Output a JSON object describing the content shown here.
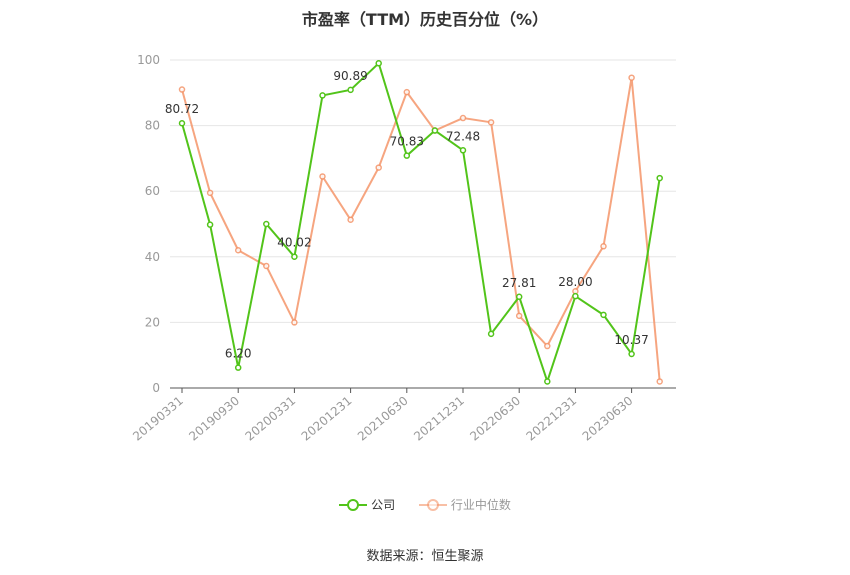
{
  "chart_data": {
    "type": "line",
    "title": "市盈率（TTM）历史百分位（%）",
    "xlabel": "",
    "ylabel": "",
    "ylim": [
      0,
      100
    ],
    "yticks": [
      0,
      20,
      40,
      60,
      80,
      100
    ],
    "x": [
      "20190331",
      "20190630",
      "20190930",
      "20191231",
      "20200331",
      "20200630",
      "20200930",
      "20201231",
      "20210331",
      "20210630",
      "20210930",
      "20211231",
      "20220331",
      "20220630",
      "20220930",
      "20221231",
      "20230331",
      "20230630",
      "20230930"
    ],
    "x_tick_labels": [
      "20190331",
      "",
      "20190930",
      "",
      "20200331",
      "",
      "20201231",
      "",
      "20210630",
      "",
      "20211231",
      "",
      "20220630",
      "",
      "20221231",
      "",
      "20230630",
      "",
      ""
    ],
    "series": [
      {
        "name": "公司",
        "color": "#52c41a",
        "values": [
          80.72,
          49.8,
          6.2,
          50.0,
          40.02,
          89.2,
          90.89,
          99.0,
          70.83,
          78.5,
          72.48,
          16.5,
          27.81,
          2.0,
          28.0,
          22.3,
          10.37,
          64.0,
          null
        ]
      },
      {
        "name": "行业中位数",
        "color": "#f4956a",
        "values": [
          91.0,
          59.5,
          42.0,
          37.2,
          20.0,
          64.5,
          51.3,
          67.2,
          90.2,
          78.5,
          82.3,
          81.0,
          22.0,
          12.8,
          29.5,
          43.2,
          94.6,
          2.0,
          null
        ]
      }
    ],
    "data_labels": [
      {
        "series": 0,
        "index": 0,
        "text": "80.72"
      },
      {
        "series": 0,
        "index": 2,
        "text": "6.20"
      },
      {
        "series": 0,
        "index": 4,
        "text": "40.02"
      },
      {
        "series": 0,
        "index": 6,
        "text": "90.89"
      },
      {
        "series": 0,
        "index": 8,
        "text": "70.83"
      },
      {
        "series": 0,
        "index": 10,
        "text": "72.48"
      },
      {
        "series": 0,
        "index": 12,
        "text": "27.81"
      },
      {
        "series": 0,
        "index": 14,
        "text": "28.00"
      },
      {
        "series": 0,
        "index": 16,
        "text": "10.37"
      }
    ],
    "legend_position": "bottom",
    "grid": true
  },
  "footer": {
    "source": "数据来源：恒生聚源"
  }
}
